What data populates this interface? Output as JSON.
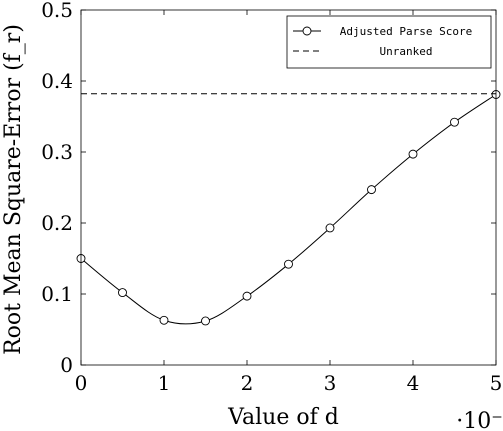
{
  "chart_data": {
    "type": "line",
    "xlabel": "Value of d",
    "ylabel": "Root Mean Square-Error (f_r)",
    "x_scale_note": "·10⁻²",
    "xlim": [
      0,
      5
    ],
    "ylim": [
      0,
      0.5
    ],
    "x_ticks": [
      0,
      1,
      2,
      3,
      4,
      5
    ],
    "y_ticks": [
      0,
      0.1,
      0.2,
      0.3,
      0.4,
      0.5
    ],
    "x_tick_labels": [
      "0",
      "1",
      "2",
      "3",
      "4",
      "5"
    ],
    "y_tick_labels": [
      "0",
      "0.1",
      "0.2",
      "0.3",
      "0.4",
      "0.5"
    ],
    "grid": false,
    "legend_position": "top-right",
    "series": [
      {
        "name": "Adjusted Parse Score",
        "style": "solid-circle-markers",
        "x": [
          0,
          0.5,
          1,
          1.5,
          2,
          2.5,
          3,
          3.5,
          4,
          4.5,
          5
        ],
        "y": [
          0.15,
          0.102,
          0.063,
          0.062,
          0.097,
          0.142,
          0.193,
          0.247,
          0.297,
          0.342,
          0.381
        ]
      },
      {
        "name": "Unranked",
        "style": "dashed",
        "x": [
          0,
          5
        ],
        "y": [
          0.382,
          0.382
        ]
      }
    ]
  }
}
